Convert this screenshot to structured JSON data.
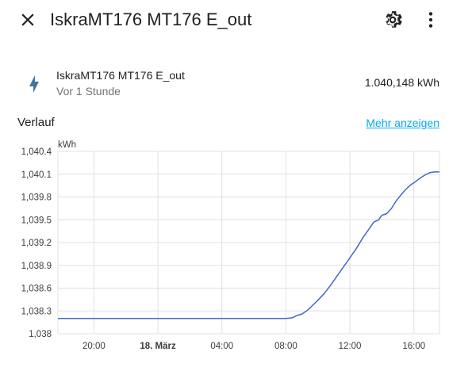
{
  "header": {
    "title": "IskraMT176 MT176 E_out",
    "close_icon": "close-icon",
    "settings_icon": "gear-icon",
    "menu_icon": "dots-vertical-icon"
  },
  "entity": {
    "icon": "lightning-bolt-icon",
    "name": "IskraMT176 MT176 E_out",
    "last_changed": "Vor 1 Stunde",
    "state": "1.040,148 kWh"
  },
  "history": {
    "title": "Verlauf",
    "more_link": "Mehr anzeigen"
  },
  "colors": {
    "accent": "#03a9f4",
    "line": "#4468c8",
    "grid": "#e0e0e0"
  },
  "chart_data": {
    "type": "line",
    "ylabel": "kWh",
    "ylim": [
      1038,
      1040.4
    ],
    "yticks": [
      "1,038",
      "1,038.3",
      "1,038.6",
      "1,038.9",
      "1,039.2",
      "1,039.5",
      "1,039.8",
      "1,040.1",
      "1,040.4"
    ],
    "x_ticks": [
      {
        "label": "20:00",
        "hour": -4,
        "bold": false
      },
      {
        "label": "18. März",
        "hour": 0,
        "bold": true
      },
      {
        "label": "04:00",
        "hour": 4,
        "bold": false
      },
      {
        "label": "08:00",
        "hour": 8,
        "bold": false
      },
      {
        "label": "12:00",
        "hour": 12,
        "bold": false
      },
      {
        "label": "16:00",
        "hour": 16,
        "bold": false
      }
    ],
    "xlim": [
      -6.25,
      17.6
    ],
    "series": [
      {
        "name": "",
        "points": [
          [
            -6.25,
            1038.2
          ],
          [
            8.0,
            1038.2
          ],
          [
            8.4,
            1038.21
          ],
          [
            8.7,
            1038.24
          ],
          [
            9.0,
            1038.26
          ],
          [
            9.3,
            1038.3
          ],
          [
            9.6,
            1038.36
          ],
          [
            10.0,
            1038.44
          ],
          [
            10.4,
            1038.53
          ],
          [
            10.8,
            1038.64
          ],
          [
            11.2,
            1038.76
          ],
          [
            11.6,
            1038.88
          ],
          [
            12.0,
            1039.0
          ],
          [
            12.4,
            1039.12
          ],
          [
            12.8,
            1039.26
          ],
          [
            13.2,
            1039.38
          ],
          [
            13.5,
            1039.47
          ],
          [
            13.8,
            1039.5
          ],
          [
            14.0,
            1039.56
          ],
          [
            14.3,
            1039.58
          ],
          [
            14.6,
            1039.65
          ],
          [
            14.9,
            1039.75
          ],
          [
            15.2,
            1039.83
          ],
          [
            15.5,
            1039.9
          ],
          [
            15.8,
            1039.96
          ],
          [
            16.1,
            1040.0
          ],
          [
            16.4,
            1040.05
          ],
          [
            16.7,
            1040.09
          ],
          [
            17.0,
            1040.12
          ],
          [
            17.3,
            1040.13
          ],
          [
            17.6,
            1040.13
          ]
        ]
      }
    ],
    "grid": true
  }
}
